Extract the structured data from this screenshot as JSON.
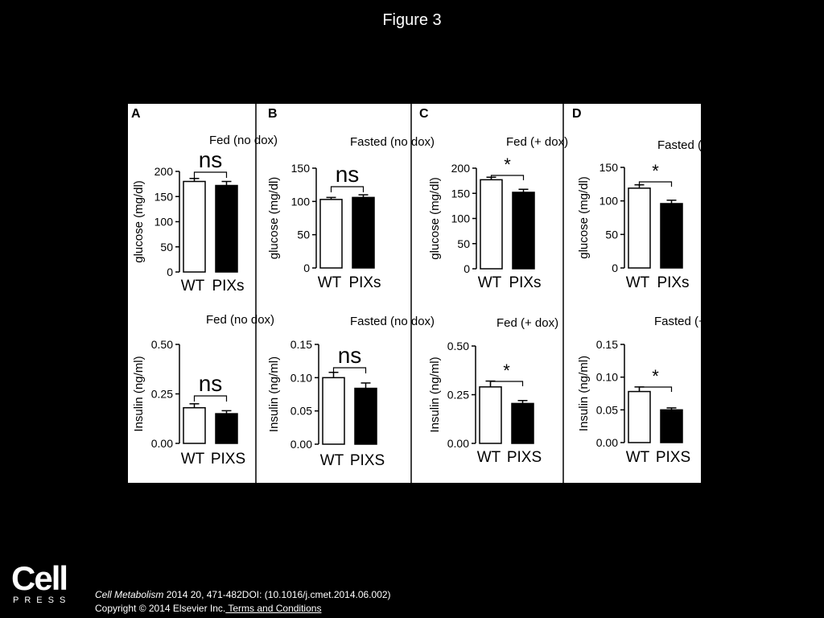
{
  "page": {
    "title": "Figure 3",
    "journal": "Cell Metabolism",
    "citation_rest": " 2014 20, 471-482DOI: (10.1016/j.cmet.2014.06.002)",
    "copyright": "Copyright © 2014 Elsevier Inc.",
    "terms_link": " Terms and Conditions",
    "logo_word": "Cell",
    "logo_sub": "PRESS"
  },
  "colors": {
    "background": "#000000",
    "panel": "#ffffff",
    "wt_fill": "#ffffff",
    "pixs_fill": "#000000",
    "ink": "#000000"
  },
  "chart_data": [
    {
      "panel": "A",
      "type": "bar",
      "title": "Fed (no dox)",
      "ylabel": "glucose (mg/dl)",
      "categories": [
        "WT",
        "PIXs"
      ],
      "values": [
        180,
        172
      ],
      "errors": [
        6,
        8
      ],
      "ylim": [
        0,
        200
      ],
      "yticks": [
        "0",
        "50",
        "100",
        "150",
        "200"
      ],
      "significance": "ns"
    },
    {
      "panel": "B",
      "type": "bar",
      "title": "Fasted (no dox)",
      "ylabel": "glucose (mg/dl)",
      "categories": [
        "WT",
        "PIXs"
      ],
      "values": [
        103,
        106
      ],
      "errors": [
        3,
        4
      ],
      "ylim": [
        0,
        150
      ],
      "yticks": [
        "0",
        "50",
        "100",
        "150"
      ],
      "significance": "ns"
    },
    {
      "panel": "C",
      "type": "bar",
      "title": "Fed (+ dox)",
      "ylabel": "glucose (mg/dl)",
      "categories": [
        "WT",
        "PIXs"
      ],
      "values": [
        177,
        152
      ],
      "errors": [
        5,
        6
      ],
      "ylim": [
        0,
        200
      ],
      "yticks": [
        "0",
        "50",
        "100",
        "150",
        "200"
      ],
      "significance": "*"
    },
    {
      "panel": "D",
      "type": "bar",
      "title": "Fasted (+ dox)",
      "ylabel": "glucose (mg/dl)",
      "categories": [
        "WT",
        "PIXs"
      ],
      "values": [
        119,
        96
      ],
      "errors": [
        5,
        5
      ],
      "ylim": [
        0,
        150
      ],
      "yticks": [
        "0",
        "50",
        "100",
        "150"
      ],
      "significance": "*"
    },
    {
      "panel": "A",
      "type": "bar",
      "title": "Fed (no dox)",
      "ylabel": "Insulin (ng/ml)",
      "categories": [
        "WT",
        "PIXS"
      ],
      "values": [
        0.18,
        0.15
      ],
      "errors": [
        0.02,
        0.015
      ],
      "ylim": [
        0,
        0.5
      ],
      "yticks": [
        "0.00",
        "0.25",
        "0.50"
      ],
      "significance": "ns"
    },
    {
      "panel": "B",
      "type": "bar",
      "title": "Fasted (no dox)",
      "ylabel": "Insulin (ng/ml)",
      "categories": [
        "WT",
        "PIXS"
      ],
      "values": [
        0.1,
        0.084
      ],
      "errors": [
        0.008,
        0.008
      ],
      "ylim": [
        0,
        0.15
      ],
      "yticks": [
        "0.00",
        "0.05",
        "0.10",
        "0.15"
      ],
      "significance": "ns"
    },
    {
      "panel": "C",
      "type": "bar",
      "title": "Fed (+ dox)",
      "ylabel": "Insulin (ng/ml)",
      "categories": [
        "WT",
        "PIXS"
      ],
      "values": [
        0.29,
        0.205
      ],
      "errors": [
        0.03,
        0.015
      ],
      "ylim": [
        0,
        0.5
      ],
      "yticks": [
        "0.00",
        "0.25",
        "0.50"
      ],
      "significance": "*"
    },
    {
      "panel": "D",
      "type": "bar",
      "title": "Fasted (+ dox)",
      "ylabel": "Insulin (ng/ml)",
      "categories": [
        "WT",
        "PIXS"
      ],
      "values": [
        0.078,
        0.05
      ],
      "errors": [
        0.007,
        0.003
      ],
      "ylim": [
        0,
        0.15
      ],
      "yticks": [
        "0.00",
        "0.05",
        "0.10",
        "0.15"
      ],
      "significance": "*"
    }
  ]
}
